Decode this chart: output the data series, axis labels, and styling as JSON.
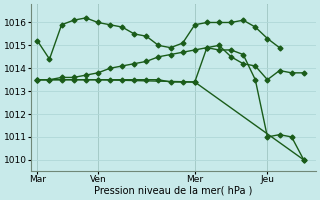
{
  "background_color": "#c8eaea",
  "grid_color": "#b0d8d8",
  "line_color": "#1a5c1a",
  "marker": "D",
  "markersize": 2.5,
  "linewidth": 1.0,
  "xlabel": "Pression niveau de la mer( hPa )",
  "ylim": [
    1009.5,
    1016.8
  ],
  "yticks": [
    1010,
    1011,
    1012,
    1013,
    1014,
    1015,
    1016
  ],
  "xtick_labels": [
    "Mar",
    "Ven",
    "Mer",
    "Jeu"
  ],
  "xtick_positions": [
    0,
    5,
    13,
    19
  ],
  "vline_positions": [
    0,
    5,
    13,
    19
  ],
  "xlim": [
    -0.5,
    23
  ],
  "line1_x": [
    0,
    1,
    2,
    3,
    4,
    5,
    6,
    7,
    8,
    9,
    10,
    11,
    12,
    13,
    14,
    15,
    16,
    17,
    18,
    19,
    20
  ],
  "line1_y": [
    1015.2,
    1014.4,
    1015.9,
    1016.1,
    1016.2,
    1016.0,
    1015.9,
    1015.8,
    1015.5,
    1015.4,
    1015.0,
    1014.9,
    1015.1,
    1015.9,
    1016.0,
    1016.0,
    1016.0,
    1016.1,
    1015.8,
    1015.3,
    1014.9
  ],
  "line2_x": [
    0,
    1,
    2,
    3,
    4,
    5,
    6,
    7,
    8,
    9,
    10,
    11,
    12,
    13,
    14,
    15,
    16,
    17,
    18,
    19,
    20,
    21,
    22
  ],
  "line2_y": [
    1013.5,
    1013.5,
    1013.6,
    1013.6,
    1013.7,
    1013.8,
    1014.0,
    1014.1,
    1014.2,
    1014.3,
    1014.5,
    1014.6,
    1014.7,
    1014.8,
    1014.9,
    1015.0,
    1014.5,
    1014.2,
    1014.1,
    1013.5,
    1013.9,
    1013.8,
    1013.8
  ],
  "line3_x": [
    0,
    5,
    13,
    22
  ],
  "line3_y": [
    1013.5,
    1013.5,
    1013.4,
    1010.0
  ],
  "line4_x": [
    0,
    1,
    2,
    3,
    4,
    5,
    6,
    7,
    8,
    9,
    10,
    11,
    12,
    13,
    14,
    15,
    16,
    17,
    18,
    19,
    20,
    21,
    22
  ],
  "line4_y": [
    1013.5,
    1013.5,
    1013.5,
    1013.5,
    1013.5,
    1013.5,
    1013.5,
    1013.5,
    1013.5,
    1013.5,
    1013.5,
    1013.4,
    1013.4,
    1013.4,
    1014.9,
    1014.8,
    1014.8,
    1014.6,
    1013.5,
    1011.0,
    1011.1,
    1011.0,
    1010.0
  ]
}
